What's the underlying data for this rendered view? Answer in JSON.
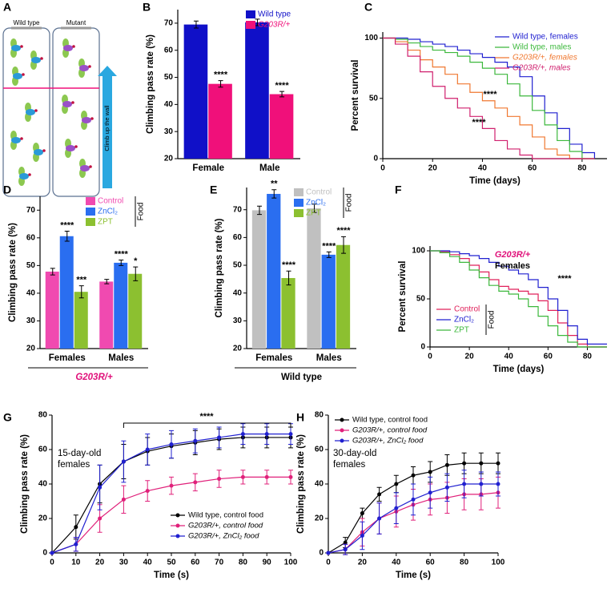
{
  "diagram": {
    "panel": "A",
    "boxes": [
      "Wild type",
      "Mutant"
    ],
    "arrow_label": "Climb up the wall"
  },
  "chart_data": [
    {
      "type": "bar",
      "panel": "B",
      "ylabel": "Climbing pass rate (%)",
      "categories": [
        "Female",
        "Male"
      ],
      "series": [
        {
          "name": "Wild type",
          "color": "#1010c8",
          "values": [
            69.5,
            70.3
          ],
          "errors": [
            1.3,
            1.2
          ],
          "significance": [
            null,
            null
          ]
        },
        {
          "name": "G203R/+",
          "color": "#f0107a",
          "values": [
            47.6,
            43.8
          ],
          "errors": [
            1.2,
            1.0
          ],
          "significance": [
            "****",
            "****"
          ]
        }
      ],
      "ylim": [
        20,
        75
      ],
      "yticks": [
        20,
        30,
        40,
        50,
        60,
        70
      ],
      "legend": "upper right"
    },
    {
      "type": "survival",
      "panel": "C",
      "xlabel": "Time (days)",
      "ylabel": "Percent survival",
      "x": [
        0,
        5,
        10,
        15,
        20,
        25,
        30,
        35,
        40,
        45,
        50,
        55,
        60,
        65,
        70,
        75,
        80,
        85
      ],
      "series": [
        {
          "name": "Wild type, females",
          "color": "#2020d0",
          "values": [
            100,
            100,
            99,
            97,
            95,
            93,
            90,
            87,
            84,
            80,
            76,
            68,
            52,
            38,
            25,
            12,
            5,
            0
          ]
        },
        {
          "name": "Wild type, males",
          "color": "#3cb83c",
          "values": [
            100,
            99,
            96,
            93,
            90,
            88,
            85,
            80,
            75,
            70,
            62,
            52,
            40,
            28,
            15,
            6,
            0,
            0
          ]
        },
        {
          "name": "G203R/+, females",
          "color": "#f07830",
          "values": [
            100,
            97,
            90,
            82,
            76,
            70,
            62,
            55,
            48,
            42,
            35,
            28,
            18,
            8,
            3,
            0,
            0,
            0
          ]
        },
        {
          "name": "G203R/+, males",
          "color": "#d0206e",
          "values": [
            100,
            95,
            85,
            72,
            60,
            50,
            42,
            35,
            25,
            15,
            8,
            3,
            0,
            0,
            0,
            0,
            0,
            0
          ]
        }
      ],
      "xlim": [
        0,
        90
      ],
      "xticks": [
        0,
        20,
        40,
        60,
        80
      ],
      "ylim": [
        0,
        105
      ],
      "yticks": [
        0,
        50,
        100
      ],
      "legend": "upper right",
      "annotations": [
        "****",
        "****"
      ]
    },
    {
      "type": "bar",
      "panel": "D",
      "ylabel": "Climbing pass rate (%)",
      "categories": [
        "Females",
        "Males"
      ],
      "group_label": "G203R/+",
      "series": [
        {
          "name": "Control",
          "color": "#f04ab0",
          "values": [
            47.8,
            44.2
          ],
          "errors": [
            1.2,
            0.8
          ],
          "significance": [
            null,
            null
          ]
        },
        {
          "name": "ZnCl₂",
          "color": "#2a6ef0",
          "values": [
            60.6,
            51.0
          ],
          "errors": [
            1.8,
            1.0
          ],
          "significance": [
            "****",
            "****"
          ]
        },
        {
          "name": "ZPT",
          "color": "#8cc030",
          "values": [
            40.5,
            47.0
          ],
          "errors": [
            2.2,
            2.5
          ],
          "significance": [
            "***",
            "*"
          ]
        }
      ],
      "ylim": [
        20,
        75
      ],
      "yticks": [
        20,
        30,
        40,
        50,
        60,
        70
      ],
      "legend": "upper right",
      "legend_title": "Food"
    },
    {
      "type": "bar",
      "panel": "E",
      "ylabel": "Climbing pass rate (%)",
      "categories": [
        "Females",
        "Males"
      ],
      "group_label": "Wild type",
      "series": [
        {
          "name": "Control",
          "color": "#c0c0c0",
          "values": [
            69.8,
            70.5
          ],
          "errors": [
            1.5,
            1.5
          ],
          "significance": [
            null,
            null
          ]
        },
        {
          "name": "ZnCl₂",
          "color": "#2a6ef0",
          "values": [
            75.7,
            53.8
          ],
          "errors": [
            1.5,
            1.0
          ],
          "significance": [
            "**",
            "****"
          ]
        },
        {
          "name": "ZPT",
          "color": "#8cc030",
          "values": [
            45.4,
            57.3
          ],
          "errors": [
            2.5,
            3.0
          ],
          "significance": [
            "****",
            "****"
          ]
        }
      ],
      "ylim": [
        20,
        78
      ],
      "yticks": [
        20,
        30,
        40,
        50,
        60,
        70
      ],
      "legend": "upper right",
      "legend_title": "Food"
    },
    {
      "type": "survival",
      "panel": "F",
      "title": "G203R/+",
      "subtitle": "Females",
      "xlabel": "Time (days)",
      "ylabel": "Percent survival",
      "x": [
        0,
        5,
        10,
        15,
        20,
        25,
        30,
        35,
        40,
        45,
        50,
        55,
        60,
        65,
        70,
        75,
        80,
        85,
        90
      ],
      "series": [
        {
          "name": "Control",
          "color": "#e0205a",
          "values": [
            100,
            99,
            96,
            92,
            85,
            78,
            70,
            63,
            60,
            58,
            55,
            48,
            38,
            25,
            12,
            3,
            0,
            0,
            0
          ]
        },
        {
          "name": "ZnCl₂",
          "color": "#2020d0",
          "values": [
            100,
            100,
            99,
            97,
            95,
            92,
            88,
            84,
            80,
            76,
            70,
            62,
            50,
            38,
            22,
            8,
            3,
            3,
            3
          ]
        },
        {
          "name": "ZPT",
          "color": "#3cb83c",
          "values": [
            100,
            98,
            94,
            88,
            80,
            72,
            64,
            58,
            55,
            50,
            42,
            32,
            22,
            12,
            5,
            0,
            0,
            0,
            0
          ]
        }
      ],
      "xlim": [
        0,
        90
      ],
      "xticks": [
        0,
        20,
        40,
        60,
        80
      ],
      "ylim": [
        0,
        105
      ],
      "yticks": [
        0,
        50,
        100
      ],
      "legend": "lower left",
      "legend_title": "Food",
      "annotations": [
        "****"
      ]
    },
    {
      "type": "line",
      "panel": "G",
      "xlabel": "Time (s)",
      "ylabel": "Climbing pass rate (%)",
      "x": [
        0,
        10,
        20,
        30,
        40,
        50,
        60,
        70,
        80,
        90,
        100
      ],
      "series": [
        {
          "name": "Wild type, control food",
          "color": "#000000",
          "values": [
            0,
            15,
            40,
            53,
            59,
            62,
            64,
            66,
            67,
            67,
            67
          ],
          "errors": [
            0,
            7,
            11,
            10,
            8,
            7,
            7,
            6,
            6,
            6,
            6
          ]
        },
        {
          "name": "G203R/+, control food",
          "color": "#e0207a",
          "values": [
            0,
            5,
            20,
            31,
            36,
            39,
            41,
            43,
            44,
            44,
            44
          ],
          "errors": [
            0,
            4,
            8,
            8,
            6,
            5,
            5,
            5,
            4,
            4,
            4
          ]
        },
        {
          "name": "G203R/+, ZnCl₂ food",
          "color": "#2020d0",
          "values": [
            0,
            5,
            38,
            53,
            60,
            63,
            65,
            67,
            69,
            69,
            69
          ],
          "errors": [
            0,
            4,
            13,
            12,
            9,
            8,
            7,
            6,
            6,
            6,
            6
          ]
        }
      ],
      "xlim": [
        0,
        100
      ],
      "xticks": [
        0,
        10,
        20,
        30,
        40,
        50,
        60,
        70,
        80,
        90,
        100
      ],
      "ylim": [
        0,
        80
      ],
      "yticks": [
        0,
        20,
        40,
        60,
        80
      ],
      "legend": "lower right",
      "annotations": [
        "15-day-old",
        "females",
        "****"
      ]
    },
    {
      "type": "line",
      "panel": "H",
      "xlabel": "Time (s)",
      "ylabel": "Climbing pass rate (%)",
      "x": [
        0,
        10,
        20,
        30,
        40,
        50,
        60,
        70,
        80,
        90,
        100
      ],
      "series": [
        {
          "name": "Wild type, control food",
          "color": "#000000",
          "values": [
            0,
            6,
            23,
            34,
            40,
            45,
            47,
            51,
            52,
            52,
            52
          ],
          "errors": [
            0,
            3,
            3,
            4,
            5,
            5,
            6,
            6,
            6,
            6,
            6
          ]
        },
        {
          "name": "G203R/+, control food",
          "color": "#e0207a",
          "values": [
            0,
            2,
            12,
            20,
            24,
            28,
            31,
            32,
            34,
            34,
            35
          ],
          "errors": [
            0,
            3,
            8,
            9,
            9,
            9,
            9,
            9,
            9,
            9,
            9
          ]
        },
        {
          "name": "G203R/+, ZnCl₂ food",
          "color": "#2020d0",
          "values": [
            0,
            2,
            10,
            20,
            26,
            31,
            35,
            38,
            40,
            40,
            40
          ],
          "errors": [
            0,
            3,
            8,
            9,
            9,
            9,
            9,
            8,
            8,
            7,
            7
          ]
        }
      ],
      "xlim": [
        0,
        100
      ],
      "xticks": [
        0,
        20,
        40,
        60,
        80,
        100
      ],
      "ylim": [
        0,
        80
      ],
      "yticks": [
        0,
        20,
        40,
        60,
        80
      ],
      "legend": "upper left",
      "annotations": [
        "30-day-old",
        "females"
      ]
    }
  ]
}
